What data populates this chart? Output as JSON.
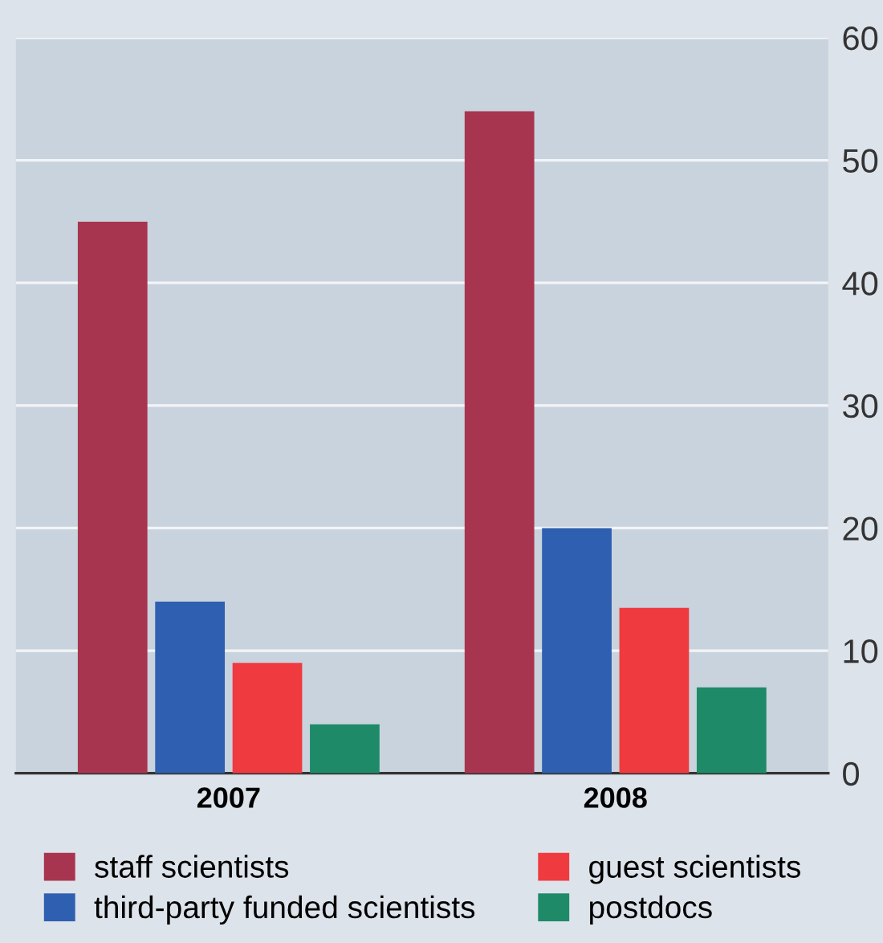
{
  "chart_data": {
    "type": "bar",
    "categories": [
      "2007",
      "2008"
    ],
    "series": [
      {
        "name": "staff scientists",
        "color": "#a8354f",
        "values": [
          45,
          54
        ]
      },
      {
        "name": "third-party funded scientists",
        "color": "#2f5fb0",
        "values": [
          14,
          20
        ]
      },
      {
        "name": "guest scientists",
        "color": "#ef3b3f",
        "values": [
          9,
          13.5
        ]
      },
      {
        "name": "postdocs",
        "color": "#1e8a68",
        "values": [
          4,
          7
        ]
      }
    ],
    "ylim": [
      0,
      60
    ],
    "yticks": [
      0,
      10,
      20,
      30,
      40,
      50,
      60
    ],
    "grid": "y",
    "legend": "bottom"
  }
}
